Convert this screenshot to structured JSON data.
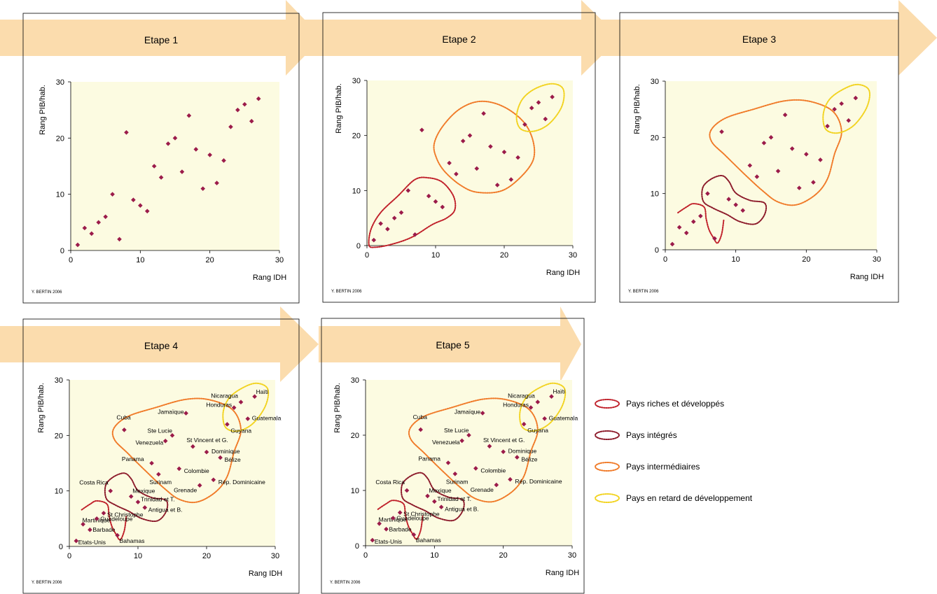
{
  "panels": [
    {
      "title": "Etape 1",
      "ylabel": "Rang PIB/hab.",
      "xlabel": "Rang IDH",
      "credit": "Y. BERTIN 2006",
      "xticks": [
        "0",
        "10",
        "20",
        "30"
      ],
      "yticks": [
        "0",
        "10",
        "20",
        "30"
      ],
      "labels": false,
      "groups": []
    },
    {
      "title": "Etape 2",
      "ylabel": "Rang PIB/hab.",
      "xlabel": "Rang IDH",
      "credit": "Y. BERTIN 2006",
      "xticks": [
        "0",
        "10",
        "20",
        "30"
      ],
      "yticks": [
        "0",
        "10",
        "20",
        "30"
      ],
      "labels": false,
      "groups": [
        "riches",
        "intermediaires",
        "retard"
      ]
    },
    {
      "title": "Etape 3",
      "ylabel": "Rang PIB/hab.",
      "xlabel": "Rang IDH",
      "credit": "Y. BERTIN 2006",
      "xticks": [
        "0",
        "10",
        "20",
        "30"
      ],
      "yticks": [
        "0",
        "10",
        "20",
        "30"
      ],
      "labels": false,
      "groups": [
        "riches",
        "integres",
        "intermediaires",
        "retard"
      ]
    },
    {
      "title": "Etape 4",
      "ylabel": "Rang PIB/hab.",
      "xlabel": "Rang IDH",
      "credit": "Y. BERTIN 2006",
      "xticks": [
        "0",
        "10",
        "20",
        "30"
      ],
      "yticks": [
        "0",
        "10",
        "20",
        "30"
      ],
      "labels": true,
      "groups": [
        "riches",
        "integres",
        "intermediaires",
        "retard"
      ]
    },
    {
      "title": "Etape 5",
      "ylabel": "Rang PIB/hab.",
      "xlabel": "Rang IDH",
      "credit": "Y. BERTIN 2006",
      "xticks": [
        "0",
        "10",
        "20",
        "30"
      ],
      "yticks": [
        "0",
        "10",
        "20",
        "30"
      ],
      "labels": true,
      "groups": [
        "riches",
        "integres",
        "intermediaires",
        "retard"
      ]
    }
  ],
  "chart_data": {
    "type": "scatter",
    "xlabel": "Rang IDH",
    "ylabel": "Rang PIB/hab.",
    "xlim": [
      0,
      30
    ],
    "ylim": [
      0,
      30
    ],
    "grid": false,
    "marker_color": "#9b1b4a",
    "plot_background": "#fcfbe1",
    "points": [
      {
        "label": "Etats-Unis",
        "x": 1,
        "y": 1
      },
      {
        "label": "Martinique",
        "x": 2,
        "y": 4
      },
      {
        "label": "Barbade",
        "x": 3,
        "y": 3
      },
      {
        "label": "Guadeloupe",
        "x": 4,
        "y": 5
      },
      {
        "label": "St Christophe",
        "x": 5,
        "y": 6
      },
      {
        "label": "Costa Rica",
        "x": 6,
        "y": 10
      },
      {
        "label": "Bahamas",
        "x": 7,
        "y": 2
      },
      {
        "label": "Cuba",
        "x": 8,
        "y": 21
      },
      {
        "label": "Mexique",
        "x": 9,
        "y": 9
      },
      {
        "label": "Trinidad et T.",
        "x": 10,
        "y": 8
      },
      {
        "label": "Antigua et B.",
        "x": 11,
        "y": 7
      },
      {
        "label": "Panama",
        "x": 12,
        "y": 15
      },
      {
        "label": "Surinam",
        "x": 13,
        "y": 13
      },
      {
        "label": "Venezuela",
        "x": 14,
        "y": 19
      },
      {
        "label": "Ste Lucie",
        "x": 15,
        "y": 20
      },
      {
        "label": "Colombie",
        "x": 16,
        "y": 14
      },
      {
        "label": "Jamaïque",
        "x": 17,
        "y": 24
      },
      {
        "label": "St Vincent et G.",
        "x": 18,
        "y": 18
      },
      {
        "label": "Grenade",
        "x": 19,
        "y": 11
      },
      {
        "label": "Dominique",
        "x": 20,
        "y": 17
      },
      {
        "label": "Rép. Dominicaine",
        "x": 21,
        "y": 12
      },
      {
        "label": "Bélize",
        "x": 22,
        "y": 16
      },
      {
        "label": "Guyana",
        "x": 23,
        "y": 22
      },
      {
        "label": "Honduras",
        "x": 24,
        "y": 25
      },
      {
        "label": "Nicaragua",
        "x": 25,
        "y": 26
      },
      {
        "label": "Guatemala",
        "x": 26,
        "y": 23
      },
      {
        "label": "Haïti",
        "x": 27,
        "y": 27
      }
    ],
    "groups": {
      "riches": {
        "name": "Pays riches et développés",
        "color": "#c0202a"
      },
      "integres": {
        "name": "Pays intégrés",
        "color": "#8c1a2a"
      },
      "intermediaires": {
        "name": "Pays intermédiaires",
        "color": "#f07a28"
      },
      "retard": {
        "name": "Pays en retard de développement",
        "color": "#f2d320"
      }
    }
  },
  "legend": {
    "items": [
      {
        "key": "riches",
        "label": "Pays riches et développés"
      },
      {
        "key": "integres",
        "label": "Pays intégrés"
      },
      {
        "key": "intermediaires",
        "label": "Pays intermédiaires"
      },
      {
        "key": "retard",
        "label": "Pays en retard de développement"
      }
    ]
  },
  "colors": {
    "arrow_band": "#fbdcad",
    "plot_background": "#fcfbe1",
    "marker": "#9b1b4a"
  }
}
